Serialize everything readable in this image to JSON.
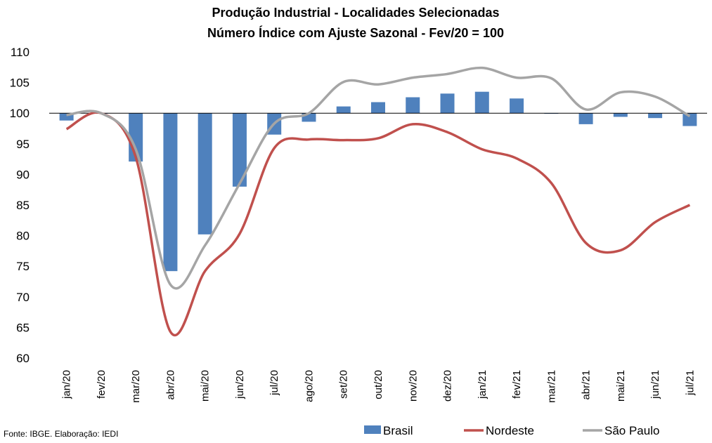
{
  "chart_data": {
    "type": "bar+line",
    "title": "Produção Industrial - Localidades Selecionadas",
    "subtitle": "Número Índice com Ajuste Sazonal - Fev/20 = 100",
    "categories": [
      "jan/20",
      "fev/20",
      "mar/20",
      "abr/20",
      "mai/20",
      "jun/20",
      "jul/20",
      "ago/20",
      "set/20",
      "out/20",
      "nov/20",
      "dez/20",
      "jan/21",
      "fev/21",
      "mar/21",
      "abr/21",
      "mai/21",
      "jun/21",
      "jul/21"
    ],
    "ylim": [
      60,
      110
    ],
    "yticks": [
      "60",
      "65",
      "70",
      "75",
      "80",
      "85",
      "90",
      "95",
      "100",
      "105",
      "110"
    ],
    "baseline": 100,
    "grid": false,
    "legend_position": "bottom",
    "series": [
      {
        "name": "Brasil",
        "type": "bar",
        "color": "#4f81bd",
        "values": [
          98.8,
          100,
          92.1,
          74.2,
          80.2,
          88,
          96.5,
          98.6,
          101.1,
          101.8,
          102.6,
          103.2,
          103.5,
          102.4,
          99.9,
          98.2,
          99.4,
          99.2,
          97.9
        ]
      },
      {
        "name": "Nordeste",
        "type": "line",
        "color": "#c0504d",
        "values": [
          97.4,
          100,
          92.8,
          64.3,
          74.2,
          80.3,
          94.3,
          95.7,
          95.6,
          95.9,
          98.2,
          96.9,
          94.1,
          92.6,
          88.6,
          78.8,
          77.6,
          82.2,
          85
        ]
      },
      {
        "name": "São Paulo",
        "type": "line",
        "color": "#a5a5a5",
        "values": [
          99.7,
          100,
          94.1,
          72,
          78.4,
          88.5,
          98.3,
          100,
          105.1,
          104.7,
          105.8,
          106.4,
          107.4,
          105.8,
          105.7,
          100.6,
          103.4,
          102.7,
          99.5
        ]
      }
    ]
  },
  "footer": {
    "source": "Fonte: IBGE. Elaboração: IEDI"
  }
}
